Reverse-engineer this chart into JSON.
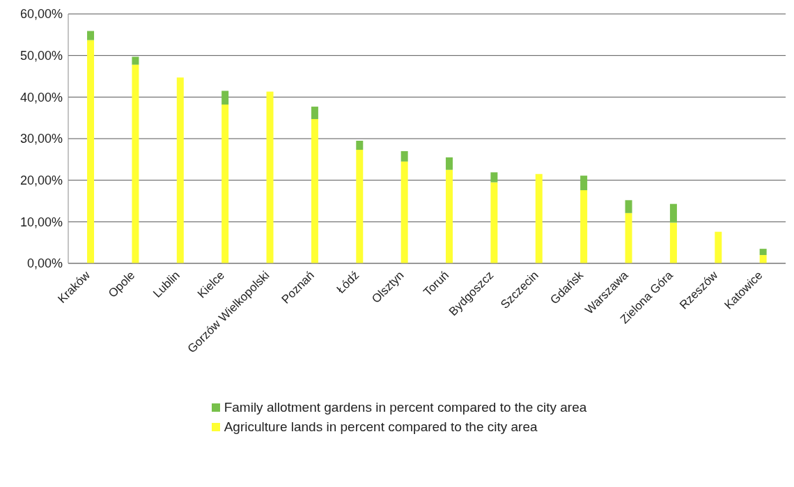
{
  "chart_data": {
    "type": "bar",
    "stacked": true,
    "categories": [
      "Kraków",
      "Opole",
      "Lublin",
      "Kielce",
      "Gorzów Wielkopolski",
      "Poznań",
      "Łódź",
      "Olsztyn",
      "Toruń",
      "Bydgoszcz",
      "Szczecin",
      "Gdańsk",
      "Warszawa",
      "Zielona Góra",
      "Rzeszów",
      "Katowice"
    ],
    "series": [
      {
        "name": "Agriculture lands in percent compared to the city area",
        "color": "#ffff33",
        "values": [
          53.7,
          47.8,
          44.7,
          38.2,
          41.3,
          34.7,
          27.3,
          24.5,
          22.5,
          19.5,
          21.5,
          17.6,
          12.1,
          9.8,
          7.6,
          2.0
        ]
      },
      {
        "name": "Family allotment gardens in percent compared to the city area",
        "color": "#77c04a",
        "values": [
          2.2,
          1.9,
          null,
          3.3,
          null,
          3.0,
          2.2,
          2.5,
          3.0,
          2.4,
          null,
          3.5,
          3.1,
          4.5,
          null,
          1.5
        ]
      }
    ],
    "ylim": [
      0,
      60
    ],
    "yticks": [
      {
        "value": 0,
        "label": "0,00%"
      },
      {
        "value": 10,
        "label": "10,00%"
      },
      {
        "value": 20,
        "label": "20,00%"
      },
      {
        "value": 30,
        "label": "30,00%"
      },
      {
        "value": 40,
        "label": "40,00%"
      },
      {
        "value": 50,
        "label": "50,00%"
      },
      {
        "value": 60,
        "label": "60,00%"
      }
    ],
    "grid": "y",
    "legend": "bottom"
  }
}
